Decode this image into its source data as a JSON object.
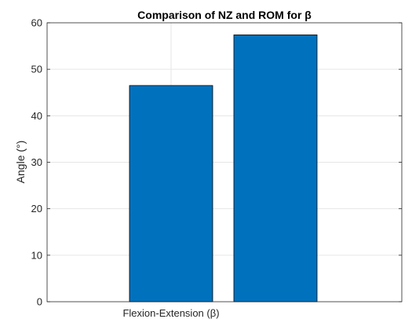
{
  "chart_data": {
    "type": "bar",
    "title": "Comparison of NZ and ROM for β",
    "xlabel": "",
    "ylabel": "Angle (°)",
    "category_label": "Flexion-Extension (β)",
    "series": [
      {
        "values": [
          46.5
        ]
      },
      {
        "values": [
          57.4
        ]
      }
    ],
    "ylim": [
      0,
      60
    ],
    "yticks": [
      0,
      10,
      20,
      30,
      40,
      50,
      60
    ],
    "grid": true,
    "bar_color": "#0072BD",
    "bar_edge_color": "#000000"
  }
}
